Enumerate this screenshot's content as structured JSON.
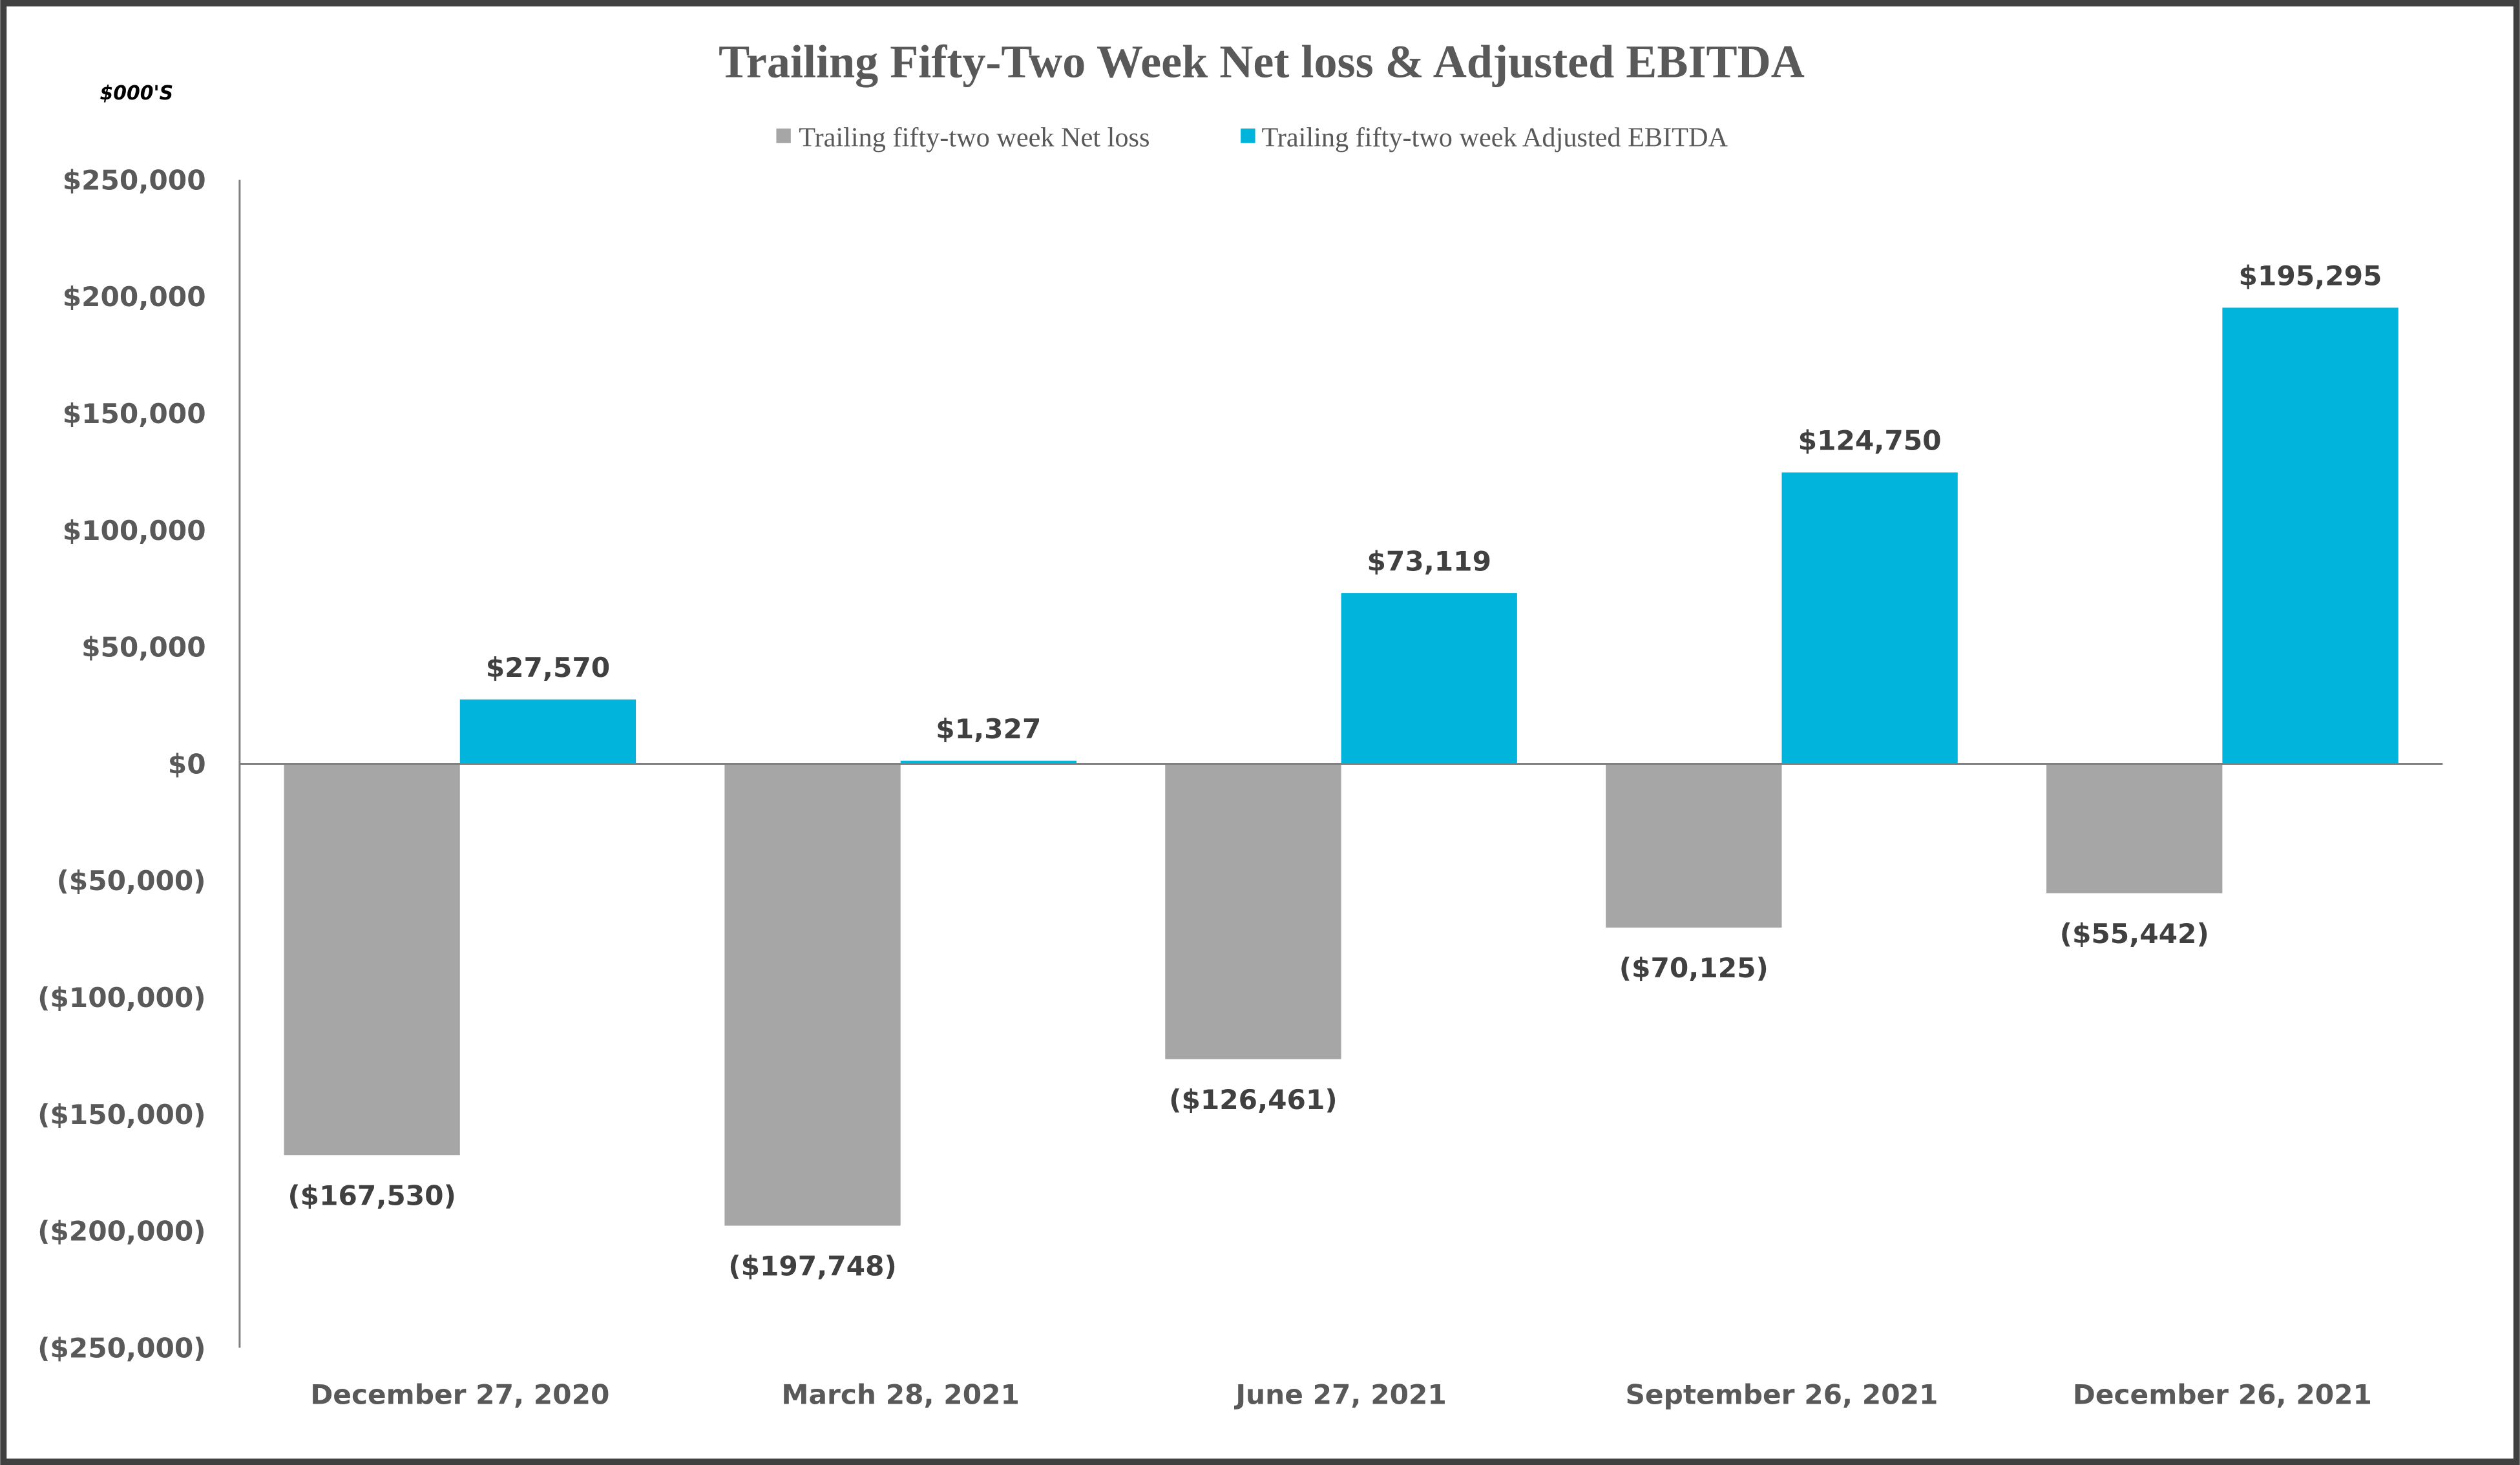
{
  "chart_data": {
    "type": "bar",
    "title": "Trailing Fifty-Two Week Net loss & Adjusted EBITDA",
    "unit_label": "$000'S",
    "categories": [
      "December 27, 2020",
      "March 28, 2021",
      "June 27, 2021",
      "September 26, 2021",
      "December 26, 2021"
    ],
    "series": [
      {
        "name": "Trailing fifty-two week Net loss",
        "color": "#A6A6A6",
        "values": [
          -167530,
          -197748,
          -126461,
          -70125,
          -55442
        ],
        "labels": [
          "($167,530)",
          "($197,748)",
          "($126,461)",
          "($70,125)",
          "($55,442)"
        ]
      },
      {
        "name": "Trailing fifty-two week Adjusted EBITDA",
        "color": "#00B4DC",
        "values": [
          27570,
          1327,
          73119,
          124750,
          195295
        ],
        "labels": [
          "$27,570",
          "$1,327",
          "$73,119",
          "$124,750",
          "$195,295"
        ]
      }
    ],
    "ylim": [
      -250000,
      250000
    ],
    "yticks": [
      250000,
      200000,
      150000,
      100000,
      50000,
      0,
      -50000,
      -100000,
      -150000,
      -200000,
      -250000
    ],
    "ytick_labels": [
      "$250,000",
      "$200,000",
      "$150,000",
      "$100,000",
      "$50,000",
      "$0",
      "($50,000)",
      "($100,000)",
      "($150,000)",
      "($200,000)",
      "($250,000)"
    ],
    "grid": false,
    "legend_position": "top"
  }
}
